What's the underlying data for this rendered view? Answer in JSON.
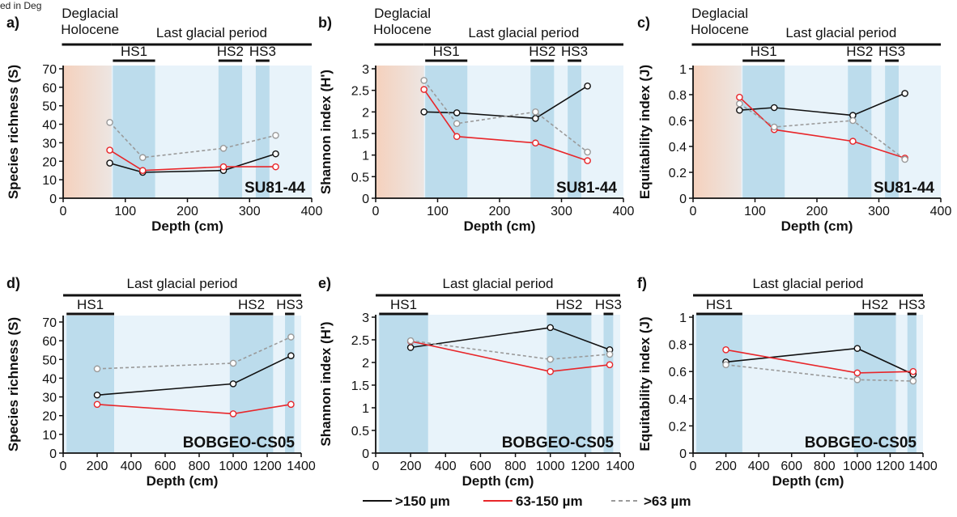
{
  "header_cut_text": "ed in Deg",
  "colors": {
    "holocene": "#f6cdb6",
    "glacial": "#e8f3fa",
    "hs": "#bcdcec",
    "black_series": "#111111",
    "red_series": "#e8262a",
    "grey_series": "#9a9a9a"
  },
  "legend": [
    {
      "label": ">150 µm",
      "color": "#111111",
      "dashed": false
    },
    {
      "label": "63-150 µm",
      "color": "#e8262a",
      "dashed": false
    },
    {
      "label": ">63 µm",
      "color": "#9a9a9a",
      "dashed": true
    }
  ],
  "chart_data": [
    {
      "panel": "a)",
      "type": "line",
      "core": "SU81-44",
      "xlabel": "Depth (cm)",
      "ylabel": "Species richness (S)",
      "xlim": [
        0,
        400
      ],
      "xticks": [
        0,
        100,
        200,
        300,
        400
      ],
      "ylim": [
        0,
        70
      ],
      "yticks": [
        0,
        10,
        20,
        30,
        40,
        50,
        60,
        70
      ],
      "holocene": [
        0,
        78
      ],
      "periods": [
        {
          "label": "Deglacial",
          "label2": "Holocene",
          "from": -2,
          "to": 78
        },
        {
          "label": "Last glacial period",
          "from": 78,
          "to": 400
        }
      ],
      "events": [
        {
          "label": "HS1",
          "from": 80,
          "to": 148
        },
        {
          "label": "HS2",
          "from": 250,
          "to": 288
        },
        {
          "label": "HS3",
          "from": 310,
          "to": 332
        }
      ],
      "series": [
        {
          "name": ">150 µm",
          "x": [
            75,
            128,
            258,
            342
          ],
          "y": [
            19,
            14,
            15,
            24
          ]
        },
        {
          "name": "63-150 µm",
          "x": [
            75,
            128,
            258,
            342
          ],
          "y": [
            26,
            15,
            17,
            17
          ]
        },
        {
          "name": ">63 µm",
          "x": [
            75,
            128,
            258,
            342
          ],
          "y": [
            41,
            22,
            27,
            34
          ]
        }
      ]
    },
    {
      "panel": "b)",
      "type": "line",
      "core": "SU81-44",
      "xlabel": "Depth (cm)",
      "ylabel": "Shannon index (H')",
      "xlim": [
        0,
        400
      ],
      "xticks": [
        0,
        100,
        200,
        300,
        400
      ],
      "ylim": [
        0,
        3
      ],
      "yticks": [
        0,
        0.5,
        1,
        1.5,
        2,
        2.5,
        3
      ],
      "holocene": [
        0,
        78
      ],
      "periods": [
        {
          "label": "Deglacial",
          "label2": "Holocene",
          "from": -2,
          "to": 78
        },
        {
          "label": "Last glacial period",
          "from": 78,
          "to": 400
        }
      ],
      "events": [
        {
          "label": "HS1",
          "from": 80,
          "to": 148
        },
        {
          "label": "HS2",
          "from": 250,
          "to": 288
        },
        {
          "label": "HS3",
          "from": 310,
          "to": 332
        }
      ],
      "series": [
        {
          "name": ">150 µm",
          "x": [
            78,
            131,
            258,
            342
          ],
          "y": [
            2.0,
            1.98,
            1.85,
            2.6
          ]
        },
        {
          "name": "63-150 µm",
          "x": [
            78,
            131,
            258,
            342
          ],
          "y": [
            2.52,
            1.43,
            1.28,
            0.87
          ]
        },
        {
          "name": ">63 µm",
          "x": [
            78,
            131,
            258,
            342
          ],
          "y": [
            2.73,
            1.73,
            2.0,
            1.07
          ]
        }
      ]
    },
    {
      "panel": "c)",
      "type": "line",
      "core": "SU81-44",
      "xlabel": "Depth (cm)",
      "ylabel": "Equitability index (J)",
      "xlim": [
        0,
        400
      ],
      "xticks": [
        0,
        100,
        200,
        300,
        400
      ],
      "ylim": [
        0,
        1
      ],
      "yticks": [
        0,
        0.2,
        0.4,
        0.6,
        0.8,
        1
      ],
      "holocene": [
        0,
        78
      ],
      "periods": [
        {
          "label": "Deglacial",
          "label2": "Holocene",
          "from": -2,
          "to": 78
        },
        {
          "label": "Last glacial period",
          "from": 78,
          "to": 400
        }
      ],
      "events": [
        {
          "label": "HS1",
          "from": 80,
          "to": 148
        },
        {
          "label": "HS2",
          "from": 250,
          "to": 288
        },
        {
          "label": "HS3",
          "from": 310,
          "to": 332
        }
      ],
      "series": [
        {
          "name": ">150 µm",
          "x": [
            75,
            131,
            258,
            342
          ],
          "y": [
            0.68,
            0.7,
            0.64,
            0.81
          ]
        },
        {
          "name": "63-150 µm",
          "x": [
            75,
            131,
            258,
            342
          ],
          "y": [
            0.78,
            0.53,
            0.44,
            0.31
          ]
        },
        {
          "name": ">63 µm",
          "x": [
            75,
            131,
            258,
            342
          ],
          "y": [
            0.73,
            0.55,
            0.6,
            0.3
          ]
        }
      ]
    },
    {
      "panel": "d)",
      "type": "line",
      "core": "BOBGEO-CS05",
      "xlabel": "Depth (cm)",
      "ylabel": "Species richness (S)",
      "xlim": [
        0,
        1400
      ],
      "xticks": [
        0,
        200,
        400,
        600,
        800,
        1000,
        1200,
        1400
      ],
      "ylim": [
        0,
        70
      ],
      "yticks": [
        0,
        10,
        20,
        30,
        40,
        50,
        60,
        70
      ],
      "holocene": null,
      "periods": [
        {
          "label": "Last glacial period",
          "from": 0,
          "to": 1400
        }
      ],
      "events": [
        {
          "label": "HS1",
          "from": 20,
          "to": 300
        },
        {
          "label": "HS2",
          "from": 980,
          "to": 1235
        },
        {
          "label": "HS3",
          "from": 1305,
          "to": 1360
        }
      ],
      "series": [
        {
          "name": ">150 µm",
          "x": [
            200,
            1000,
            1340
          ],
          "y": [
            31,
            37,
            52
          ]
        },
        {
          "name": "63-150 µm",
          "x": [
            200,
            1000,
            1340
          ],
          "y": [
            26,
            21,
            26
          ]
        },
        {
          "name": ">63 µm",
          "x": [
            200,
            1000,
            1340
          ],
          "y": [
            45,
            48,
            62
          ]
        }
      ]
    },
    {
      "panel": "e)",
      "type": "line",
      "core": "BOBGEO-CS05",
      "xlabel": "Depth (cm)",
      "ylabel": "Shannon index (H')",
      "xlim": [
        0,
        1400
      ],
      "xticks": [
        0,
        200,
        400,
        600,
        800,
        1000,
        1200,
        1400
      ],
      "ylim": [
        0,
        3
      ],
      "yticks": [
        0,
        0.5,
        1,
        1.5,
        2,
        2.5,
        3
      ],
      "holocene": null,
      "periods": [
        {
          "label": "Last glacial period",
          "from": 0,
          "to": 1400
        }
      ],
      "events": [
        {
          "label": "HS1",
          "from": 20,
          "to": 300
        },
        {
          "label": "HS2",
          "from": 980,
          "to": 1235
        },
        {
          "label": "HS3",
          "from": 1305,
          "to": 1360
        }
      ],
      "series": [
        {
          "name": ">150 µm",
          "x": [
            200,
            1000,
            1340
          ],
          "y": [
            2.33,
            2.77,
            2.28
          ]
        },
        {
          "name": "63-150 µm",
          "x": [
            200,
            1000,
            1340
          ],
          "y": [
            2.47,
            1.8,
            1.95
          ]
        },
        {
          "name": ">63 µm",
          "x": [
            200,
            1000,
            1340
          ],
          "y": [
            2.48,
            2.07,
            2.18
          ]
        }
      ]
    },
    {
      "panel": "f)",
      "type": "line",
      "core": "BOBGEO-CS05",
      "xlabel": "Depth (cm)",
      "ylabel": "Equitability index (J)",
      "xlim": [
        0,
        1400
      ],
      "xticks": [
        0,
        200,
        400,
        600,
        800,
        1000,
        1200,
        1400
      ],
      "ylim": [
        0,
        1
      ],
      "yticks": [
        0,
        0.2,
        0.4,
        0.6,
        0.8,
        1
      ],
      "holocene": null,
      "periods": [
        {
          "label": "Last glacial period",
          "from": 0,
          "to": 1400
        }
      ],
      "events": [
        {
          "label": "HS1",
          "from": 20,
          "to": 300
        },
        {
          "label": "HS2",
          "from": 980,
          "to": 1235
        },
        {
          "label": "HS3",
          "from": 1305,
          "to": 1360
        }
      ],
      "series": [
        {
          "name": ">150 µm",
          "x": [
            200,
            1000,
            1340
          ],
          "y": [
            0.67,
            0.77,
            0.58
          ]
        },
        {
          "name": "63-150 µm",
          "x": [
            200,
            1000,
            1340
          ],
          "y": [
            0.76,
            0.59,
            0.6
          ]
        },
        {
          "name": ">63 µm",
          "x": [
            200,
            1000,
            1340
          ],
          "y": [
            0.65,
            0.54,
            0.53
          ]
        }
      ]
    }
  ]
}
